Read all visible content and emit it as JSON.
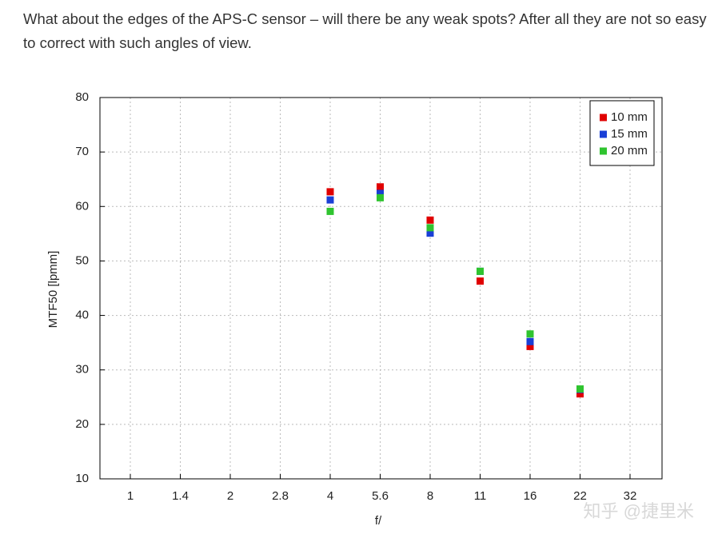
{
  "text": "What about the edges of the APS-C sensor – will there be any weak spots? After all they are not so easy to correct with such angles of view.",
  "watermark": "知乎 @捷里米",
  "chart_data": {
    "type": "scatter",
    "xlabel": "f/",
    "ylabel": "MTF50 [lpmm]",
    "categories": [
      "1",
      "1.4",
      "2",
      "2.8",
      "4",
      "5.6",
      "8",
      "11",
      "16",
      "22",
      "32"
    ],
    "series": [
      {
        "name": "10 mm",
        "color": "#e00000",
        "values": [
          null,
          null,
          null,
          null,
          62.7,
          63.6,
          57.5,
          46.3,
          34.3,
          25.6,
          null
        ]
      },
      {
        "name": "15 mm",
        "color": "#1a3fd6",
        "values": [
          null,
          null,
          null,
          null,
          61.2,
          62.4,
          55.1,
          48.1,
          35.2,
          26.4,
          null
        ]
      },
      {
        "name": "20 mm",
        "color": "#2fc42f",
        "values": [
          null,
          null,
          null,
          null,
          59.1,
          61.6,
          56.1,
          48.1,
          36.6,
          26.5,
          null
        ]
      }
    ],
    "ylim": [
      10,
      80
    ],
    "yticks": [
      10,
      20,
      30,
      40,
      50,
      60,
      70,
      80
    ],
    "grid": true,
    "legend": "top-right"
  }
}
